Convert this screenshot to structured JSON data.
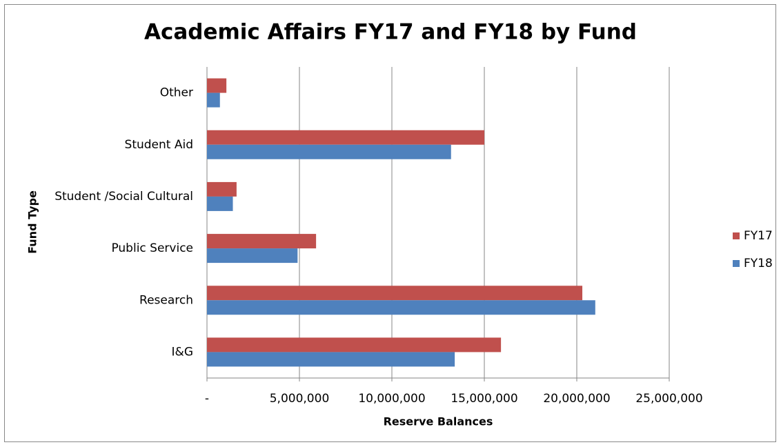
{
  "chart_data": {
    "type": "bar",
    "orientation": "horizontal",
    "title": "Academic Affairs FY17 and FY18 by Fund",
    "x_label": "Reserve Balances",
    "y_label": "Fund Type",
    "categories": [
      "Other",
      "Student Aid",
      "Student /Social Cultural",
      "Public Service",
      "Research",
      "I&G"
    ],
    "series": [
      {
        "name": "FY17",
        "color": "#c0504d",
        "values": [
          1050000,
          15000000,
          1600000,
          5900000,
          20300000,
          15900000
        ]
      },
      {
        "name": "FY18",
        "color": "#4f81bd",
        "values": [
          700000,
          13200000,
          1400000,
          4900000,
          21000000,
          13400000
        ]
      }
    ],
    "xlim": [
      0,
      25000000
    ],
    "xticks": [
      {
        "value": 0,
        "label": "-"
      },
      {
        "value": 5000000,
        "label": "5,000,000"
      },
      {
        "value": 10000000,
        "label": "10,000,000"
      },
      {
        "value": 15000000,
        "label": "15,000,000"
      },
      {
        "value": 20000000,
        "label": "20,000,000"
      },
      {
        "value": 25000000,
        "label": "25,000,000"
      }
    ],
    "grid": true,
    "legend": "right"
  }
}
